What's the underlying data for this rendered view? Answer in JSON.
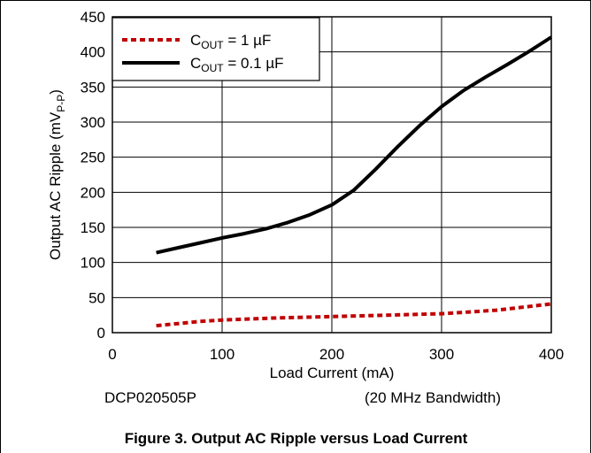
{
  "chart_data": {
    "type": "line",
    "title": "",
    "xlabel": "Load Current (mA)",
    "ylabel": {
      "main": "Output AC Ripple (mV",
      "sub": "P-P",
      "end": ")"
    },
    "xlim": [
      0,
      400
    ],
    "ylim": [
      0,
      450
    ],
    "x_ticks": [
      0,
      100,
      200,
      300,
      400
    ],
    "y_ticks": [
      0,
      50,
      100,
      150,
      200,
      250,
      300,
      350,
      400,
      450
    ],
    "grid": true,
    "legend_position": "top-left",
    "series": [
      {
        "name": {
          "c": "C",
          "sub": "OUT",
          "rest": " = 1 µF"
        },
        "style": "dashed",
        "color": "#c00000",
        "points": [
          [
            40,
            10
          ],
          [
            60,
            13
          ],
          [
            80,
            16
          ],
          [
            100,
            18
          ],
          [
            150,
            21
          ],
          [
            200,
            23
          ],
          [
            250,
            25
          ],
          [
            300,
            27
          ],
          [
            350,
            32
          ],
          [
            400,
            41
          ]
        ]
      },
      {
        "name": {
          "c": "C",
          "sub": "OUT",
          "rest": " = 0.1 µF"
        },
        "style": "solid",
        "color": "#000000",
        "points": [
          [
            40,
            114
          ],
          [
            60,
            121
          ],
          [
            80,
            128
          ],
          [
            100,
            135
          ],
          [
            120,
            141
          ],
          [
            140,
            148
          ],
          [
            160,
            157
          ],
          [
            180,
            168
          ],
          [
            200,
            182
          ],
          [
            220,
            203
          ],
          [
            240,
            233
          ],
          [
            260,
            265
          ],
          [
            280,
            295
          ],
          [
            300,
            322
          ],
          [
            320,
            345
          ],
          [
            340,
            364
          ],
          [
            360,
            382
          ],
          [
            380,
            401
          ],
          [
            400,
            421
          ]
        ]
      }
    ]
  },
  "notes": {
    "left": "DCP020505P",
    "right": "(20 MHz Bandwidth)"
  },
  "caption": "Figure 3. Output AC Ripple versus Load Current"
}
